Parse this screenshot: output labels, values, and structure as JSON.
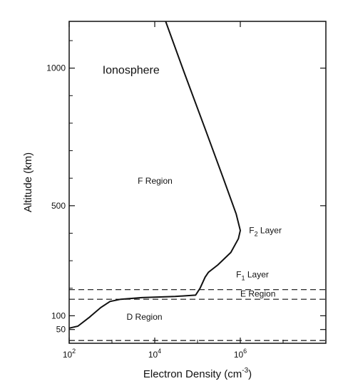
{
  "chart_data": {
    "type": "line",
    "title": "",
    "xlabel": "Electron Density (cm⁻³)",
    "xlabel_parts": {
      "base": "Electron Density (cm",
      "sup": "-3",
      "close": ")"
    },
    "ylabel": "Altitude (km)",
    "x_scale": "log",
    "xlim": [
      100,
      100000000
    ],
    "ylim": [
      0,
      1170
    ],
    "x_ticks": [
      {
        "value": 100,
        "base": "10",
        "exp": "2"
      },
      {
        "value": 10000,
        "base": "10",
        "exp": "4"
      },
      {
        "value": 1000000,
        "base": "10",
        "exp": "6"
      }
    ],
    "y_ticks": [
      {
        "value": 50,
        "label": "50"
      },
      {
        "value": 100,
        "label": "100"
      },
      {
        "value": 500,
        "label": "500"
      },
      {
        "value": 1000,
        "label": "1000"
      }
    ],
    "series": [
      {
        "points": [
          {
            "x": 100,
            "y": 55
          },
          {
            "x": 160,
            "y": 62
          },
          {
            "x": 300,
            "y": 95
          },
          {
            "x": 550,
            "y": 130
          },
          {
            "x": 900,
            "y": 152
          },
          {
            "x": 1600,
            "y": 160
          },
          {
            "x": 5000,
            "y": 166
          },
          {
            "x": 30000,
            "y": 170
          },
          {
            "x": 90000,
            "y": 175
          },
          {
            "x": 115000,
            "y": 200
          },
          {
            "x": 150000,
            "y": 240
          },
          {
            "x": 180000,
            "y": 258
          },
          {
            "x": 300000,
            "y": 285
          },
          {
            "x": 600000,
            "y": 330
          },
          {
            "x": 900000,
            "y": 380
          },
          {
            "x": 1000000,
            "y": 410
          },
          {
            "x": 800000,
            "y": 470
          },
          {
            "x": 400000,
            "y": 600
          },
          {
            "x": 150000,
            "y": 780
          },
          {
            "x": 50000,
            "y": 980
          },
          {
            "x": 18000,
            "y": 1170
          }
        ]
      }
    ],
    "boundaries": [
      {
        "y": 195,
        "style": "dashed"
      },
      {
        "y": 160,
        "style": "dashed"
      },
      {
        "y": 10,
        "style": "dashed"
      }
    ],
    "annotations": [
      {
        "text": "Ionosphere",
        "x": 600,
        "y": 980,
        "size": "large"
      },
      {
        "text": "F Region",
        "x": 4000,
        "y": 580
      },
      {
        "text": "D Region",
        "x": 2200,
        "y": 85
      }
    ],
    "layer_labels": [
      {
        "base": "F",
        "sub": "2",
        "rest": " Layer",
        "x": 1600000,
        "y": 410
      },
      {
        "base": "F",
        "sub": "1",
        "rest": " Layer",
        "x": 800000,
        "y": 250
      }
    ],
    "e_region_label": {
      "text": "E Region",
      "x": 1000000,
      "y": 180
    },
    "grid": false
  }
}
